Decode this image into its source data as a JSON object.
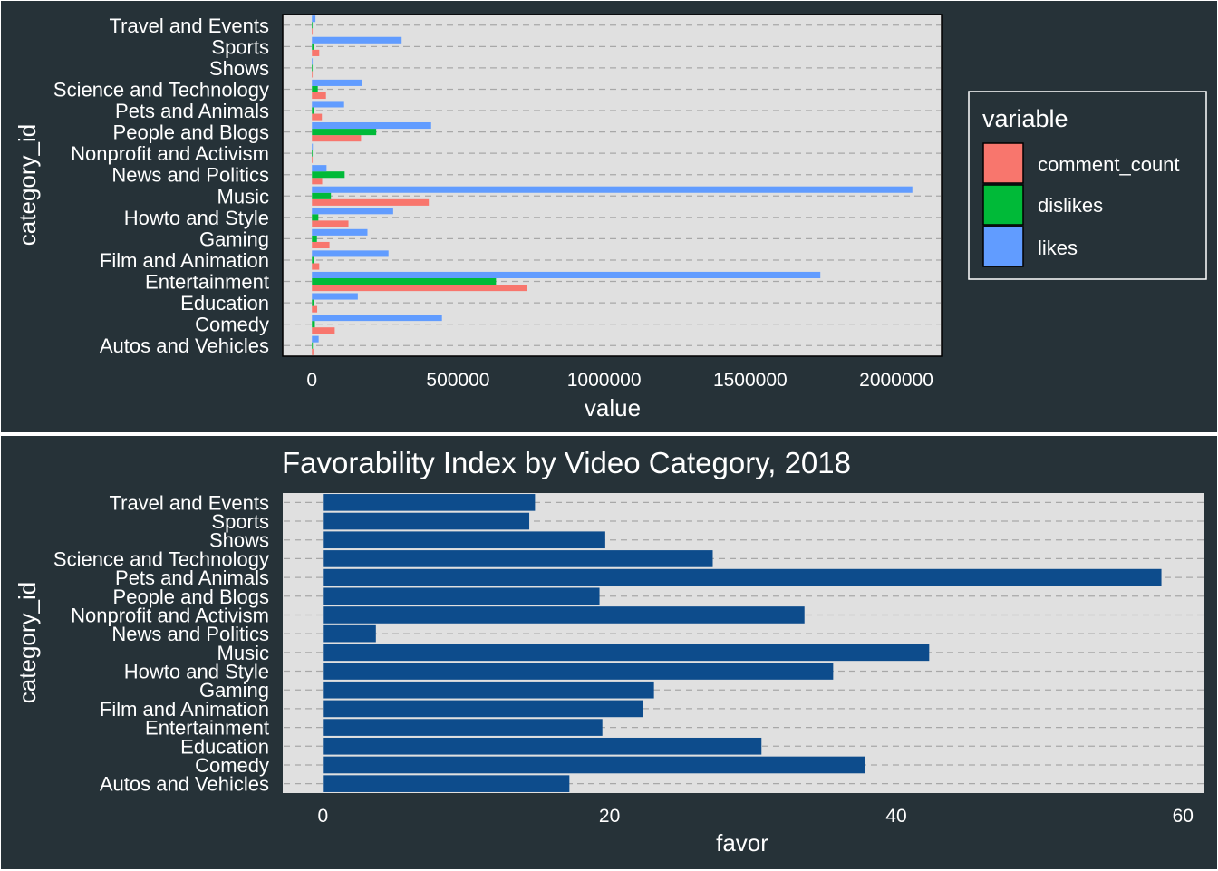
{
  "chart_data": [
    {
      "type": "bar",
      "orientation": "horizontal",
      "xlabel": "value",
      "ylabel": "category_id",
      "categories": [
        "Autos and Vehicles",
        "Comedy",
        "Education",
        "Entertainment",
        "Film and Animation",
        "Gaming",
        "Howto and Style",
        "Music",
        "News and Politics",
        "Nonprofit and Activism",
        "People and Blogs",
        "Pets and Animals",
        "Science and Technology",
        "Shows",
        "Sports",
        "Travel and Events"
      ],
      "series": [
        {
          "name": "comment_count",
          "color": "#F8766D",
          "values": [
            5000,
            78000,
            18000,
            735000,
            25000,
            60000,
            125000,
            400000,
            35000,
            500,
            168000,
            34000,
            48000,
            1500,
            25000,
            2500
          ]
        },
        {
          "name": "dislikes",
          "color": "#00BA38",
          "values": [
            3000,
            10000,
            6000,
            630000,
            6000,
            17000,
            22000,
            65000,
            112000,
            1000,
            220000,
            7000,
            20000,
            1000,
            6000,
            1500
          ]
        },
        {
          "name": "likes",
          "color": "#619CFF",
          "values": [
            23000,
            445000,
            157000,
            1740000,
            262000,
            190000,
            278000,
            2055000,
            50000,
            3000,
            408000,
            110000,
            172000,
            2000,
            307000,
            12000
          ]
        }
      ],
      "xlim": [
        -100000,
        2155000
      ],
      "xticks": [
        0,
        500000,
        1000000,
        1500000,
        2000000
      ],
      "xtick_labels": [
        "0",
        "500000",
        "1000000",
        "1500000",
        "2000000"
      ],
      "grid": "dashed horizontal",
      "legend": {
        "title": "variable",
        "position": "right"
      }
    },
    {
      "type": "bar",
      "orientation": "horizontal",
      "title": "Favorability Index by Video Category, 2018",
      "xlabel": "favor",
      "ylabel": "category_id",
      "color": "#0D4C8C",
      "categories": [
        "Autos and Vehicles",
        "Comedy",
        "Education",
        "Entertainment",
        "Film and Animation",
        "Gaming",
        "Howto and Style",
        "Music",
        "News and Politics",
        "Nonprofit and Activism",
        "People and Blogs",
        "Pets and Animals",
        "Science and Technology",
        "Shows",
        "Sports",
        "Travel and Events"
      ],
      "values": [
        17.2,
        37.8,
        30.6,
        19.5,
        22.3,
        23.1,
        35.6,
        42.3,
        3.7,
        33.6,
        19.3,
        58.5,
        27.2,
        19.7,
        14.4,
        14.8
      ],
      "xlim": [
        -2.8,
        61.5
      ],
      "xticks": [
        0,
        20,
        40,
        60
      ],
      "xtick_labels": [
        "0",
        "20",
        "40",
        "60"
      ],
      "grid": "dashed horizontal"
    }
  ]
}
